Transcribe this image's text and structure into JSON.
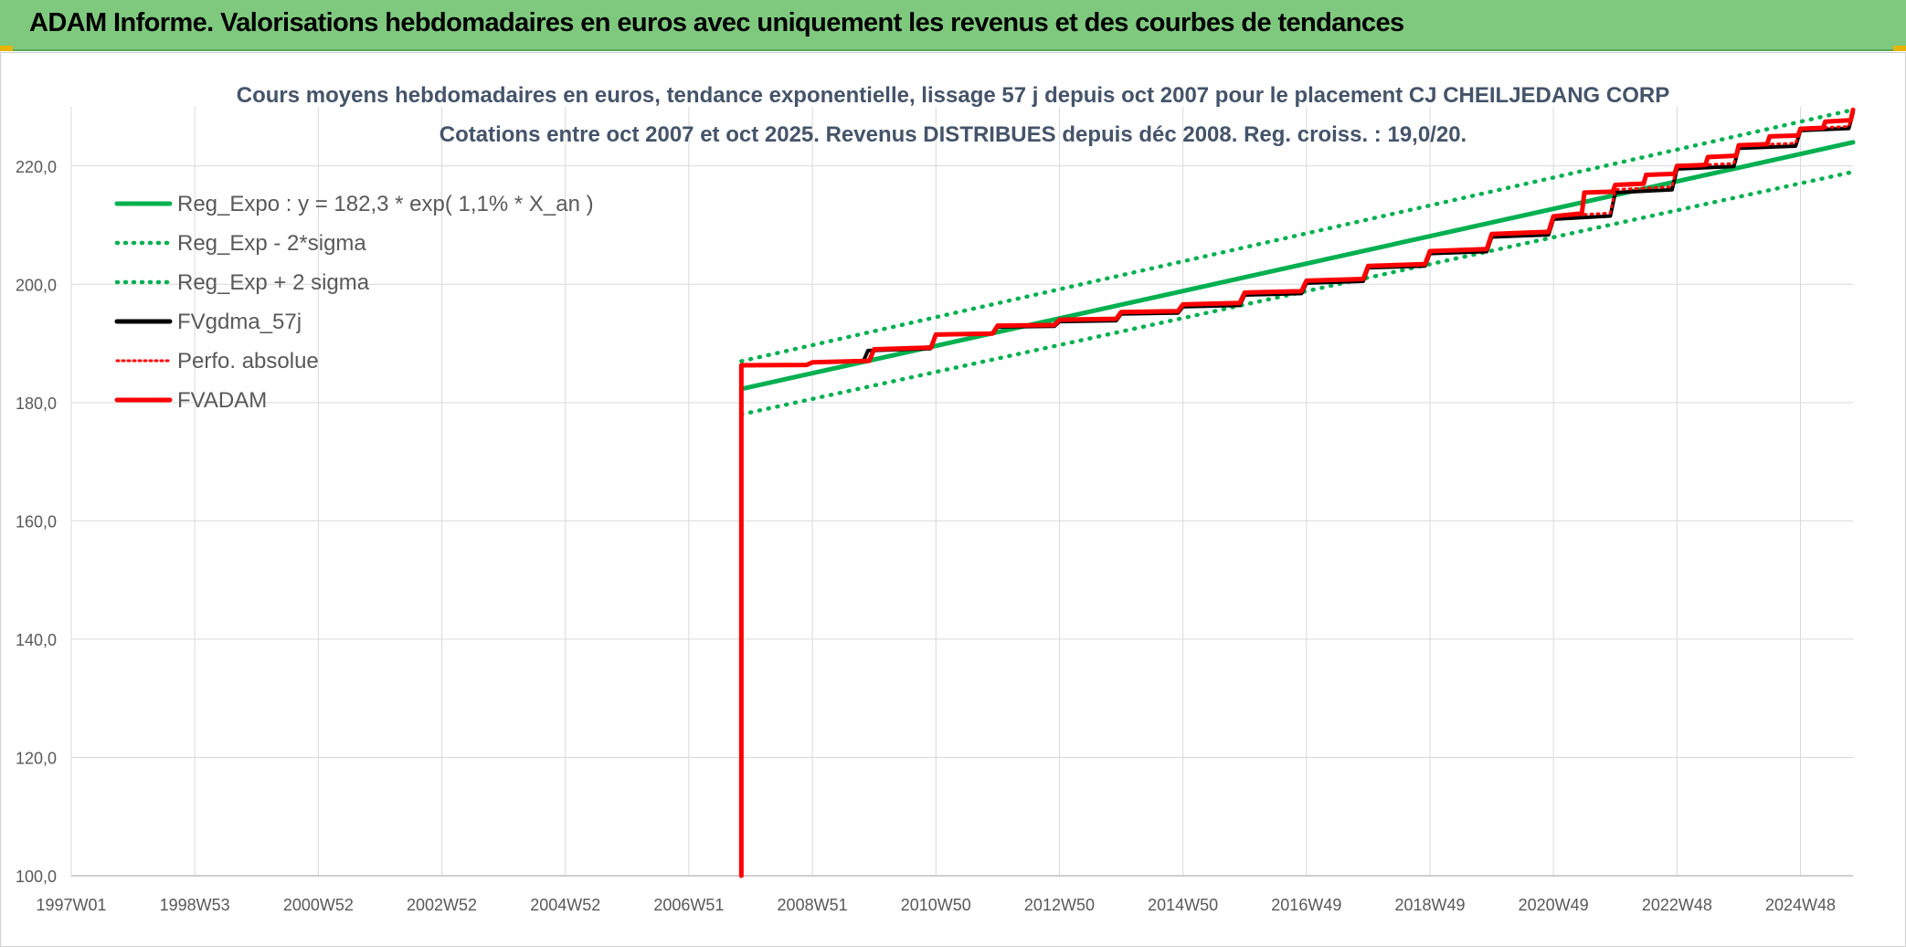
{
  "banner": {
    "title": "ADAM Informe. Valorisations hebdomadaires en euros avec uniquement les revenus et des courbes de tendances"
  },
  "chart_data": {
    "type": "line",
    "title": "Cours moyens hebdomadaires en euros, tendance exponentielle, lissage 57 j depuis oct 2007 pour le placement CJ CHEILJEDANG CORP",
    "subtitle": "Cotations entre oct 2007 et oct 2025. Revenus DISTRIBUES depuis déc 2008. Reg. croiss. : 19,0/20.",
    "xlabel": "",
    "ylabel": "",
    "ylim": [
      100,
      230
    ],
    "yticks": [
      "100,0",
      "120,0",
      "140,0",
      "160,0",
      "180,0",
      "200,0",
      "220,0"
    ],
    "xlim": [
      1997.0,
      2025.85
    ],
    "xtick_labels": [
      "1997W01",
      "1998W53",
      "2000W52",
      "2002W52",
      "2004W52",
      "2006W51",
      "2008W51",
      "2010W50",
      "2012W50",
      "2014W50",
      "2016W49",
      "2018W49",
      "2020W49",
      "2022W48",
      "2024W48"
    ],
    "xtick_years": [
      1997.0,
      1999.0,
      2001.0,
      2003.0,
      2005.0,
      2007.0,
      2009.0,
      2011.0,
      2013.0,
      2015.0,
      2017.0,
      2019.0,
      2021.0,
      2023.0,
      2025.0
    ],
    "grid": true,
    "legend_position": "top-left",
    "colors": {
      "green": "#00b050",
      "black": "#000000",
      "red": "#ff0000",
      "grid": "#d9d9d9",
      "axis_text": "#595959"
    },
    "series": [
      {
        "name": "Reg_Expo : y = 182,3 * exp( 1,1% *  X_an )",
        "style": "solid",
        "color": "#00b050",
        "x": [
          2007.85,
          2025.85
        ],
        "y": [
          182.3,
          224.0
        ]
      },
      {
        "name": "Reg_Exp - 2*sigma",
        "style": "dotted",
        "color": "#00b050",
        "x": [
          2007.85,
          2025.85
        ],
        "y": [
          178.0,
          219.0
        ]
      },
      {
        "name": "Reg_Exp + 2 sigma",
        "style": "dotted",
        "color": "#00b050",
        "x": [
          2007.85,
          2025.85
        ],
        "y": [
          187.0,
          229.5
        ]
      },
      {
        "name": "FVgdma_57j",
        "style": "solid",
        "color": "#000000",
        "x": [
          2007.95,
          2009.0,
          2009.9,
          2011.0,
          2012.0,
          2013.0,
          2014.0,
          2015.0,
          2016.0,
          2017.0,
          2018.0,
          2019.0,
          2020.0,
          2021.0,
          2022.0,
          2023.0,
          2024.0,
          2025.0,
          2025.85
        ],
        "y": [
          186.3,
          186.8,
          188.8,
          191.5,
          192.8,
          193.7,
          195.0,
          196.2,
          198.2,
          200.2,
          202.8,
          205.2,
          208.0,
          211.0,
          215.5,
          219.5,
          223.0,
          226.0,
          229.0
        ]
      },
      {
        "name": "Perfo. absolue",
        "style": "dotted",
        "color": "#ff0000",
        "x": [
          2007.85,
          2009.0,
          2010.0,
          2011.0,
          2012.0,
          2013.0,
          2014.0,
          2015.0,
          2016.0,
          2017.0,
          2018.0,
          2019.0,
          2020.0,
          2021.0,
          2022.0,
          2023.0,
          2024.0,
          2025.0,
          2025.85
        ],
        "y": [
          186.3,
          186.8,
          189.0,
          191.5,
          193.0,
          194.0,
          195.3,
          196.6,
          198.6,
          200.6,
          203.1,
          205.6,
          208.5,
          211.5,
          216.0,
          220.0,
          223.5,
          226.3,
          229.5
        ]
      },
      {
        "name": "FVADAM",
        "style": "solid",
        "color": "#ff0000",
        "x": [
          2007.85,
          2007.85,
          2009.0,
          2010.0,
          2011.0,
          2012.0,
          2013.0,
          2014.0,
          2015.0,
          2016.0,
          2017.0,
          2018.0,
          2019.0,
          2020.0,
          2021.0,
          2021.5,
          2022.0,
          2022.5,
          2023.0,
          2023.5,
          2024.0,
          2024.5,
          2025.0,
          2025.4,
          2025.85
        ],
        "y": [
          100.0,
          186.3,
          186.8,
          189.0,
          191.5,
          193.0,
          194.0,
          195.3,
          196.6,
          198.6,
          200.6,
          203.1,
          205.6,
          208.5,
          211.5,
          215.5,
          216.8,
          218.5,
          220.0,
          221.5,
          223.5,
          225.0,
          226.3,
          227.5,
          229.5
        ]
      }
    ]
  }
}
